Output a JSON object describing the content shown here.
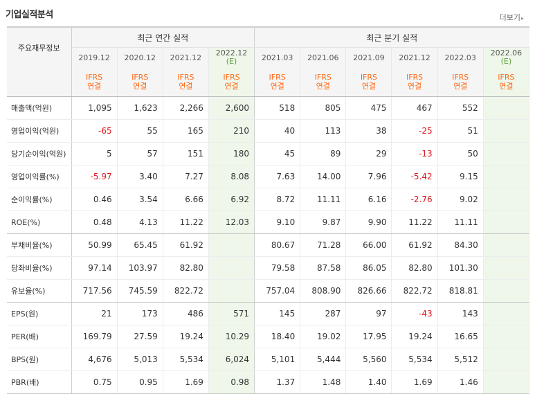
{
  "section_title": "기업실적분석",
  "more_label": "더보기",
  "corner_label": "주요재무정보",
  "group_headers": {
    "annual": "최근 연간 실적",
    "quarterly": "최근 분기 실적"
  },
  "periods": [
    {
      "date": "2019.12",
      "est": ""
    },
    {
      "date": "2020.12",
      "est": ""
    },
    {
      "date": "2021.12",
      "est": ""
    },
    {
      "date": "2022.12",
      "est": "(E)"
    },
    {
      "date": "2021.03",
      "est": ""
    },
    {
      "date": "2021.06",
      "est": ""
    },
    {
      "date": "2021.09",
      "est": ""
    },
    {
      "date": "2021.12",
      "est": ""
    },
    {
      "date": "2022.03",
      "est": ""
    },
    {
      "date": "2022.06",
      "est": "(E)"
    }
  ],
  "basis": {
    "line1": "IFRS",
    "line2": "연결"
  },
  "rows": [
    {
      "label": "매출액(억원)",
      "values": [
        "1,095",
        "1,623",
        "2,266",
        "2,600",
        "518",
        "805",
        "475",
        "467",
        "552",
        ""
      ]
    },
    {
      "label": "영업이익(억원)",
      "values": [
        "-65",
        "55",
        "165",
        "210",
        "40",
        "113",
        "38",
        "-25",
        "51",
        ""
      ]
    },
    {
      "label": "당기순이익(억원)",
      "values": [
        "5",
        "57",
        "151",
        "180",
        "45",
        "89",
        "29",
        "-13",
        "50",
        ""
      ]
    },
    {
      "label": "영업이익률(%)",
      "values": [
        "-5.97",
        "3.40",
        "7.27",
        "8.08",
        "7.63",
        "14.00",
        "7.96",
        "-5.42",
        "9.15",
        ""
      ]
    },
    {
      "label": "순이익률(%)",
      "values": [
        "0.46",
        "3.54",
        "6.66",
        "6.92",
        "8.72",
        "11.11",
        "6.16",
        "-2.76",
        "9.02",
        ""
      ]
    },
    {
      "label": "ROE(%)",
      "values": [
        "0.48",
        "4.13",
        "11.22",
        "12.03",
        "9.10",
        "9.87",
        "9.90",
        "11.22",
        "11.11",
        ""
      ]
    },
    {
      "label": "부채비율(%)",
      "values": [
        "50.99",
        "65.45",
        "61.92",
        "",
        "80.67",
        "71.28",
        "66.00",
        "61.92",
        "84.30",
        ""
      ]
    },
    {
      "label": "당좌비율(%)",
      "values": [
        "97.14",
        "103.97",
        "82.80",
        "",
        "79.58",
        "87.58",
        "86.05",
        "82.80",
        "101.30",
        ""
      ]
    },
    {
      "label": "유보율(%)",
      "values": [
        "717.56",
        "745.59",
        "822.72",
        "",
        "757.04",
        "808.90",
        "826.66",
        "822.72",
        "818.81",
        ""
      ]
    },
    {
      "label": "EPS(원)",
      "values": [
        "21",
        "173",
        "486",
        "571",
        "145",
        "287",
        "97",
        "-43",
        "143",
        ""
      ]
    },
    {
      "label": "PER(배)",
      "values": [
        "169.79",
        "27.59",
        "19.24",
        "10.29",
        "18.40",
        "19.02",
        "17.95",
        "19.24",
        "16.65",
        ""
      ]
    },
    {
      "label": "BPS(원)",
      "values": [
        "4,676",
        "5,013",
        "5,534",
        "6,024",
        "5,101",
        "5,444",
        "5,560",
        "5,534",
        "5,512",
        ""
      ]
    },
    {
      "label": "PBR(배)",
      "values": [
        "0.75",
        "0.95",
        "1.69",
        "0.98",
        "1.37",
        "1.48",
        "1.40",
        "1.69",
        "1.46",
        ""
      ]
    }
  ],
  "colors": {
    "negative": "#e0161c",
    "basis": "#ff6a16",
    "estimate_bg": "#eef7ea",
    "estimate_mark": "#5b9b3a"
  }
}
